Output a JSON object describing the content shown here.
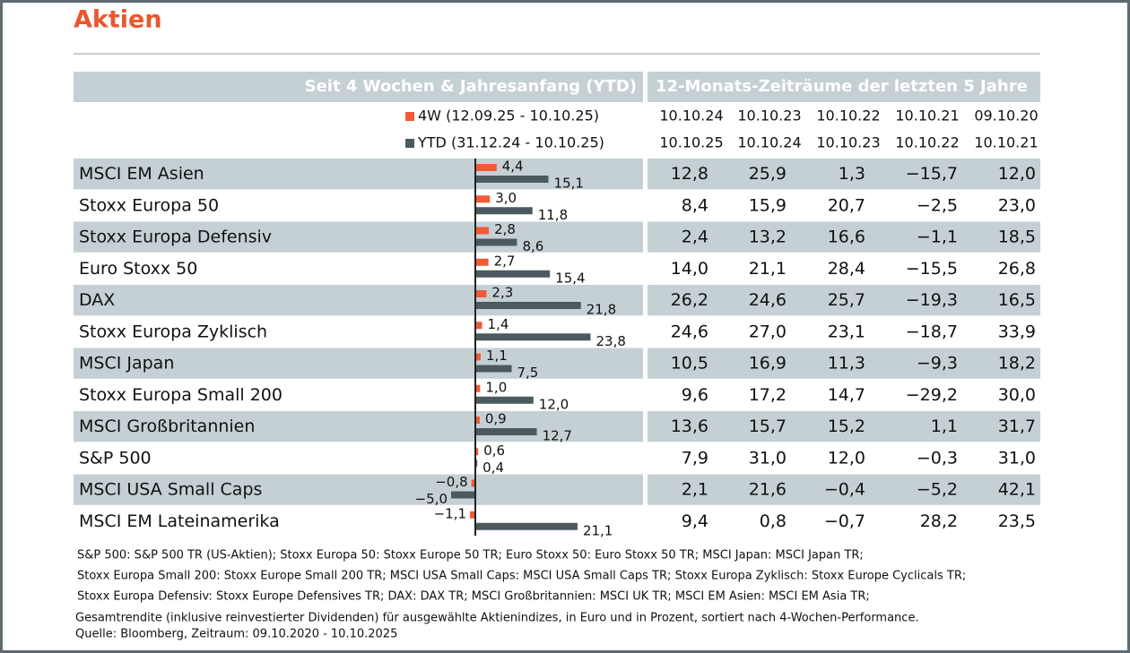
{
  "title": "Aktien",
  "chart_data": {
    "type": "bar",
    "orientation": "horizontal",
    "categories": [
      "MSCI EM Asien",
      "Stoxx Europa 50",
      "Stoxx Europa Defensiv",
      "Euro Stoxx 50",
      "DAX",
      "Stoxx Europa Zyklisch",
      "MSCI Japan",
      "Stoxx Europa Small 200",
      "MSCI Großbritannien",
      "S&P 500",
      "MSCI USA Small Caps",
      "MSCI EM Lateinamerika"
    ],
    "series": [
      {
        "name": "4W (12.09.25 - 10.10.25)",
        "color": "#f05a35",
        "values": [
          4.4,
          3.0,
          2.8,
          2.7,
          2.3,
          1.4,
          1.1,
          1.0,
          0.9,
          0.6,
          -0.8,
          -1.1
        ],
        "value_labels": [
          "4,4",
          "3,0",
          "2,8",
          "2,7",
          "2,3",
          "1,4",
          "1,1",
          "1,0",
          "0,9",
          "0,6",
          "−0,8",
          "−1,1"
        ]
      },
      {
        "name": "YTD (31.12.24 - 10.10.25)",
        "color": "#4b5a5e",
        "values": [
          15.1,
          11.8,
          8.6,
          15.4,
          21.8,
          23.8,
          7.5,
          12.0,
          12.7,
          0.4,
          -5.0,
          21.1
        ],
        "value_labels": [
          "15,1",
          "11,8",
          "8,6",
          "15,4",
          "21,8",
          "23,8",
          "7,5",
          "12,0",
          "12,7",
          "0,4",
          "−5,0",
          "21,1"
        ]
      }
    ],
    "xlim": [
      -5,
      25
    ]
  },
  "table": {
    "header_left": "Seit 4 Wochen & Jahresanfang (YTD)",
    "header_right": "12-Monats-Zeiträume der letzten 5 Jahre",
    "periods": [
      [
        "10.10.24",
        "10.10.25"
      ],
      [
        "10.10.23",
        "10.10.24"
      ],
      [
        "10.10.22",
        "10.10.23"
      ],
      [
        "10.10.21",
        "10.10.22"
      ],
      [
        "09.10.20",
        "10.10.21"
      ]
    ],
    "rows": [
      [
        "12,8",
        "25,9",
        "1,3",
        "−15,7",
        "12,0"
      ],
      [
        "8,4",
        "15,9",
        "20,7",
        "−2,5",
        "23,0"
      ],
      [
        "2,4",
        "13,2",
        "16,6",
        "−1,1",
        "18,5"
      ],
      [
        "14,0",
        "21,1",
        "28,4",
        "−15,5",
        "26,8"
      ],
      [
        "26,2",
        "24,6",
        "25,7",
        "−19,3",
        "16,5"
      ],
      [
        "24,6",
        "27,0",
        "23,1",
        "−18,7",
        "33,9"
      ],
      [
        "10,5",
        "16,9",
        "11,3",
        "−9,3",
        "18,2"
      ],
      [
        "9,6",
        "17,2",
        "14,7",
        "−29,2",
        "30,0"
      ],
      [
        "13,6",
        "15,7",
        "15,2",
        "1,1",
        "31,7"
      ],
      [
        "7,9",
        "31,0",
        "12,0",
        "−0,3",
        "31,0"
      ],
      [
        "2,1",
        "21,6",
        "−0,4",
        "−5,2",
        "42,1"
      ],
      [
        "9,4",
        "0,8",
        "−0,7",
        "28,2",
        "23,5"
      ]
    ]
  },
  "footnotes": [
    "S&P 500: S&P 500 TR (US-Aktien); Stoxx Europa 50: Stoxx Europe 50 TR; Euro Stoxx 50: Euro Stoxx 50 TR; MSCI Japan: MSCI Japan TR;",
    "Stoxx Europa Small 200: Stoxx Europe Small 200 TR;  MSCI USA Small Caps: MSCI USA Small Caps TR; Stoxx Europa Zyklisch: Stoxx Europe Cyclicals TR;",
    "Stoxx Europa Defensiv: Stoxx Europe Defensives TR; DAX: DAX TR; MSCI Großbritannien: MSCI UK TR; MSCI EM Asien: MSCI EM Asia TR;"
  ],
  "note": "Gesamtrendite (inklusive reinvestierter Dividenden) für ausgewählte Aktienindizes, in Euro und in Prozent, sortiert nach 4-Wochen-Performance.",
  "source": "Quelle: Bloomberg, Zeitraum: 09.10.2020 - 10.10.2025"
}
